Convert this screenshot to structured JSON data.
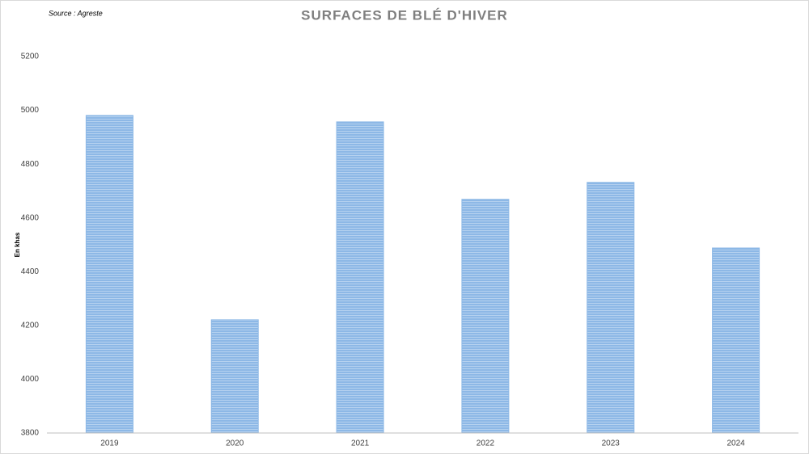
{
  "chart_data": {
    "type": "bar",
    "title": "SURFACES DE BLÉ D'HIVER",
    "source": "Source : Agreste",
    "y_label": "En khas",
    "categories": [
      "2019",
      "2020",
      "2021",
      "2022",
      "2023",
      "2024"
    ],
    "values": [
      4981,
      4221,
      4957,
      4669,
      4732,
      4488
    ],
    "color": "#8db8e6",
    "ylim": [
      3800,
      5200
    ],
    "yticks": [
      3800,
      4000,
      4200,
      4400,
      4600,
      4800,
      5000,
      5200
    ],
    "grid": false
  }
}
